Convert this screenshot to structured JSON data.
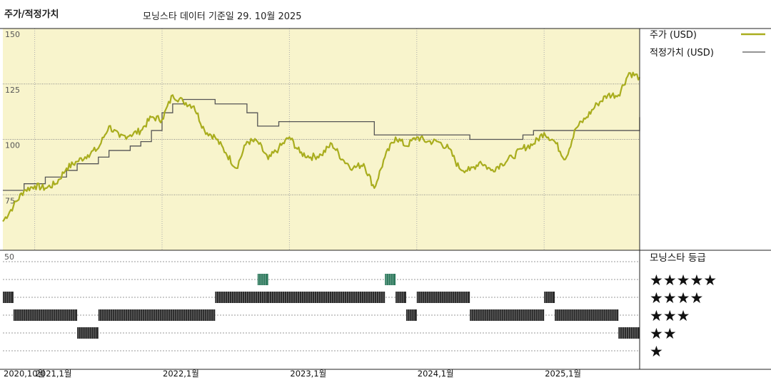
{
  "header": {
    "title": "주가/적정가치",
    "subtitle": "모닝스타 데이터 기준일 29. 10월 2025"
  },
  "colors": {
    "price": "#a9ad1e",
    "fair_value": "#555555",
    "plot_bg": "#f8f4cc",
    "rating_bar": "#2a2a2a",
    "rating_bar_5": "#2f7a5e"
  },
  "chart_data": [
    {
      "type": "line",
      "ylim": [
        50,
        150
      ],
      "yticks": [
        "150",
        "125",
        "100",
        "75"
      ],
      "x_labels": [
        "2020,10월",
        "2021,1월",
        "2022,1월",
        "2023,1월",
        "2024,1월",
        "2025,1월"
      ],
      "x_range": [
        "2020-10",
        "2025-10"
      ],
      "grid": true,
      "legend": "right",
      "series": [
        {
          "name": "주가 (USD)",
          "x": [
            "2020-10",
            "2020-11",
            "2020-12",
            "2021-01",
            "2021-02",
            "2021-03",
            "2021-04",
            "2021-05",
            "2021-06",
            "2021-07",
            "2021-08",
            "2021-09",
            "2021-10",
            "2021-11",
            "2021-12",
            "2022-01",
            "2022-02",
            "2022-03",
            "2022-04",
            "2022-05",
            "2022-06",
            "2022-07",
            "2022-08",
            "2022-09",
            "2022-10",
            "2022-11",
            "2022-12",
            "2023-01",
            "2023-02",
            "2023-03",
            "2023-04",
            "2023-05",
            "2023-06",
            "2023-07",
            "2023-08",
            "2023-09",
            "2023-10",
            "2023-11",
            "2023-12",
            "2024-01",
            "2024-02",
            "2024-03",
            "2024-04",
            "2024-05",
            "2024-06",
            "2024-07",
            "2024-08",
            "2024-09",
            "2024-10",
            "2024-11",
            "2024-12",
            "2025-01",
            "2025-02",
            "2025-03",
            "2025-04",
            "2025-05",
            "2025-06",
            "2025-07",
            "2025-08",
            "2025-09",
            "2025-10"
          ],
          "values": [
            63,
            70,
            77,
            79,
            78,
            80,
            87,
            90,
            93,
            96,
            106,
            101,
            102,
            104,
            110,
            109,
            120,
            117,
            115,
            104,
            101,
            94,
            87,
            99,
            99,
            91,
            96,
            101,
            94,
            92,
            93,
            98,
            91,
            87,
            89,
            78,
            92,
            101,
            97,
            101,
            99,
            99,
            96,
            87,
            86,
            90,
            86,
            89,
            92,
            96,
            98,
            103,
            99,
            91,
            105,
            110,
            116,
            120,
            120,
            130,
            128
          ]
        },
        {
          "name": "적정가치 (USD)",
          "x": [
            "2020-10",
            "2020-12",
            "2021-01",
            "2021-02",
            "2021-04",
            "2021-05",
            "2021-07",
            "2021-08",
            "2021-10",
            "2021-11",
            "2021-12",
            "2022-01",
            "2022-02",
            "2022-03",
            "2022-06",
            "2022-09",
            "2022-10",
            "2022-12",
            "2023-01",
            "2023-02",
            "2023-03",
            "2023-06",
            "2023-09",
            "2023-10",
            "2024-01",
            "2024-02",
            "2024-03",
            "2024-05",
            "2024-06",
            "2024-07",
            "2024-08",
            "2024-09",
            "2024-10",
            "2024-11",
            "2024-12",
            "2025-01",
            "2025-02",
            "2025-06",
            "2025-07",
            "2025-08",
            "2025-09",
            "2025-10"
          ],
          "values": [
            77,
            80,
            80,
            83,
            86,
            89,
            92,
            95,
            97,
            99,
            104,
            112,
            116,
            118,
            116,
            112,
            106,
            108,
            108,
            108,
            108,
            108,
            102,
            102,
            102,
            102,
            102,
            102,
            100,
            100,
            100,
            100,
            100,
            102,
            104,
            104,
            104,
            104,
            104,
            104,
            104,
            110
          ]
        }
      ]
    },
    {
      "type": "timeline",
      "title": "모닝스타 등급",
      "ylim_label": "50",
      "star_labels": [
        "★★★★★",
        "★★★★",
        "★★★",
        "★★",
        "★"
      ],
      "periods": [
        {
          "start": "2020-10",
          "end": "2020-11",
          "stars": 4
        },
        {
          "start": "2020-11",
          "end": "2021-05",
          "stars": 3
        },
        {
          "start": "2021-05",
          "end": "2021-07",
          "stars": 2
        },
        {
          "start": "2021-07",
          "end": "2022-06",
          "stars": 3
        },
        {
          "start": "2022-06",
          "end": "2022-11",
          "stars": 4
        },
        {
          "start": "2022-10",
          "end": "2022-11",
          "stars": 5
        },
        {
          "start": "2022-11",
          "end": "2023-10",
          "stars": 4
        },
        {
          "start": "2023-10",
          "end": "2023-11",
          "stars": 5
        },
        {
          "start": "2023-11",
          "end": "2023-12",
          "stars": 4
        },
        {
          "start": "2023-12",
          "end": "2024-01",
          "stars": 3
        },
        {
          "start": "2024-01",
          "end": "2024-06",
          "stars": 4
        },
        {
          "start": "2024-06",
          "end": "2025-01",
          "stars": 3
        },
        {
          "start": "2025-01",
          "end": "2025-02",
          "stars": 4
        },
        {
          "start": "2025-02",
          "end": "2025-08",
          "stars": 3
        },
        {
          "start": "2025-08",
          "end": "2025-10",
          "stars": 2
        }
      ]
    }
  ]
}
